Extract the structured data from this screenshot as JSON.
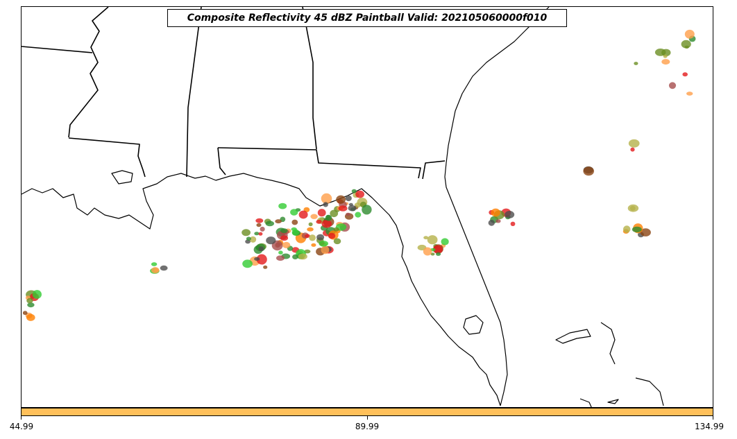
{
  "title": "Composite Reflectivity 45 dBZ Paintball Valid: 202105060000f010",
  "colorbar": {
    "color": "#ffc05a",
    "tick_labels": [
      "44.99",
      "89.99",
      "134.99"
    ]
  },
  "map": {
    "background": "#ffffff",
    "outline_color": "#000000",
    "paintball_colors": [
      "#e31a1c",
      "#ff7f00",
      "#ff9f4a",
      "#33cc33",
      "#2e8b2e",
      "#4d4d4d",
      "#a64d4d",
      "#b5b14a",
      "#8b4513",
      "#6b8e23"
    ]
  }
}
